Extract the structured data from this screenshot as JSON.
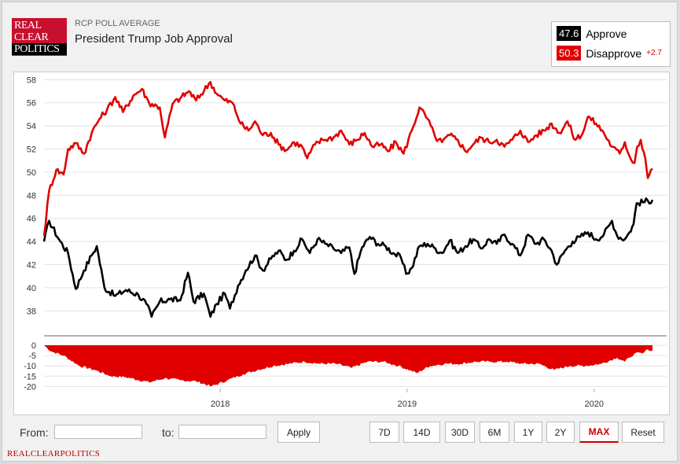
{
  "header": {
    "logo_lines": [
      "REAL",
      "CLEAR",
      "POLITICS"
    ],
    "subtitle": "RCP POLL AVERAGE",
    "title": "President Trump Job Approval"
  },
  "legend": {
    "approve": {
      "value": "47.6",
      "label": "Approve",
      "color": "#000000"
    },
    "disapprove": {
      "value": "50.3",
      "label": "Disapprove",
      "delta": "+2.7",
      "color": "#e00000"
    }
  },
  "controls": {
    "from_label": "From:",
    "to_label": "to:",
    "from_value": "",
    "to_value": "",
    "apply_label": "Apply",
    "ranges": [
      "7D",
      "14D",
      "30D",
      "6M",
      "1Y",
      "2Y",
      "MAX"
    ],
    "active_range": "MAX",
    "reset_label": "Reset"
  },
  "footer": "REALCLEARPOLITICS",
  "chart_data": [
    {
      "type": "line",
      "ylim": [
        37,
        58.5
      ],
      "yticks": [
        38,
        40,
        42,
        44,
        46,
        48,
        50,
        52,
        54,
        56,
        58
      ],
      "xlim": [
        "2017-01-22",
        "2020-04-24"
      ],
      "xticks": [
        {
          "label": "2018",
          "date": "2018-01-01"
        },
        {
          "label": "2019",
          "date": "2019-01-01"
        },
        {
          "label": "2020",
          "date": "2020-01-01"
        }
      ],
      "series": [
        {
          "name": "Approve",
          "color": "#000000",
          "points": [
            [
              "2017-01-22",
              44.0
            ],
            [
              "2017-02-01",
              45.8
            ],
            [
              "2017-02-20",
              44.2
            ],
            [
              "2017-03-10",
              43.0
            ],
            [
              "2017-03-25",
              39.9
            ],
            [
              "2017-04-10",
              41.5
            ],
            [
              "2017-04-25",
              42.8
            ],
            [
              "2017-05-05",
              43.6
            ],
            [
              "2017-05-20",
              40.0
            ],
            [
              "2017-06-10",
              39.3
            ],
            [
              "2017-07-01",
              39.8
            ],
            [
              "2017-07-25",
              39.4
            ],
            [
              "2017-08-10",
              38.6
            ],
            [
              "2017-08-20",
              37.5
            ],
            [
              "2017-09-05",
              38.8
            ],
            [
              "2017-09-25",
              39.0
            ],
            [
              "2017-10-15",
              38.9
            ],
            [
              "2017-10-30",
              41.3
            ],
            [
              "2017-11-10",
              38.8
            ],
            [
              "2017-11-30",
              39.5
            ],
            [
              "2017-12-13",
              37.5
            ],
            [
              "2017-12-25",
              38.6
            ],
            [
              "2018-01-10",
              39.5
            ],
            [
              "2018-01-20",
              38.2
            ],
            [
              "2018-02-05",
              40.2
            ],
            [
              "2018-02-20",
              41.5
            ],
            [
              "2018-03-10",
              42.8
            ],
            [
              "2018-03-25",
              41.5
            ],
            [
              "2018-04-10",
              42.5
            ],
            [
              "2018-04-25",
              43.2
            ],
            [
              "2018-05-10",
              42.4
            ],
            [
              "2018-05-25",
              43.2
            ],
            [
              "2018-06-10",
              44.2
            ],
            [
              "2018-06-25",
              43.0
            ],
            [
              "2018-07-10",
              44.2
            ],
            [
              "2018-07-25",
              43.8
            ],
            [
              "2018-08-10",
              43.4
            ],
            [
              "2018-08-25",
              43.0
            ],
            [
              "2018-09-10",
              43.5
            ],
            [
              "2018-09-20",
              41.2
            ],
            [
              "2018-10-05",
              43.5
            ],
            [
              "2018-10-20",
              44.4
            ],
            [
              "2018-11-05",
              43.8
            ],
            [
              "2018-11-20",
              43.6
            ],
            [
              "2018-12-05",
              43.0
            ],
            [
              "2018-12-20",
              42.6
            ],
            [
              "2018-12-30",
              41.2
            ],
            [
              "2019-01-10",
              41.7
            ],
            [
              "2019-01-25",
              43.6
            ],
            [
              "2019-02-10",
              43.8
            ],
            [
              "2019-02-25",
              43.4
            ],
            [
              "2019-03-10",
              43.0
            ],
            [
              "2019-03-25",
              44.1
            ],
            [
              "2019-04-10",
              43.0
            ],
            [
              "2019-04-25",
              43.6
            ],
            [
              "2019-05-10",
              44.2
            ],
            [
              "2019-05-25",
              43.4
            ],
            [
              "2019-06-10",
              44.2
            ],
            [
              "2019-06-25",
              43.8
            ],
            [
              "2019-07-10",
              44.6
            ],
            [
              "2019-07-25",
              43.8
            ],
            [
              "2019-08-10",
              42.8
            ],
            [
              "2019-08-25",
              44.6
            ],
            [
              "2019-09-10",
              43.8
            ],
            [
              "2019-09-25",
              44.2
            ],
            [
              "2019-10-10",
              43.2
            ],
            [
              "2019-10-20",
              42.0
            ],
            [
              "2019-11-05",
              43.2
            ],
            [
              "2019-11-20",
              44.0
            ],
            [
              "2019-12-05",
              44.4
            ],
            [
              "2019-12-20",
              44.8
            ],
            [
              "2020-01-05",
              44.2
            ],
            [
              "2020-01-20",
              44.6
            ],
            [
              "2020-02-05",
              45.8
            ],
            [
              "2020-02-15",
              44.5
            ],
            [
              "2020-03-01",
              44.2
            ],
            [
              "2020-03-10",
              44.8
            ],
            [
              "2020-03-18",
              45.5
            ],
            [
              "2020-03-24",
              47.3
            ],
            [
              "2020-04-24",
              47.6
            ]
          ]
        },
        {
          "name": "Disapprove",
          "color": "#e00000",
          "points": [
            [
              "2017-01-22",
              44.5
            ],
            [
              "2017-02-01",
              48.4
            ],
            [
              "2017-02-15",
              50.2
            ],
            [
              "2017-03-01",
              49.8
            ],
            [
              "2017-03-10",
              52.0
            ],
            [
              "2017-03-25",
              52.5
            ],
            [
              "2017-04-10",
              51.6
            ],
            [
              "2017-04-25",
              53.4
            ],
            [
              "2017-05-10",
              54.6
            ],
            [
              "2017-05-25",
              55.4
            ],
            [
              "2017-06-10",
              56.5
            ],
            [
              "2017-06-25",
              55.2
            ],
            [
              "2017-07-15",
              56.6
            ],
            [
              "2017-08-01",
              57.2
            ],
            [
              "2017-08-15",
              56.0
            ],
            [
              "2017-09-05",
              55.6
            ],
            [
              "2017-09-15",
              53.0
            ],
            [
              "2017-09-30",
              55.9
            ],
            [
              "2017-10-15",
              56.4
            ],
            [
              "2017-11-01",
              57.0
            ],
            [
              "2017-11-15",
              56.2
            ],
            [
              "2017-12-13",
              57.8
            ],
            [
              "2017-12-25",
              56.8
            ],
            [
              "2018-01-10",
              56.2
            ],
            [
              "2018-01-25",
              56.0
            ],
            [
              "2018-02-10",
              54.2
            ],
            [
              "2018-02-25",
              53.6
            ],
            [
              "2018-03-10",
              54.4
            ],
            [
              "2018-03-25",
              53.2
            ],
            [
              "2018-04-10",
              53.4
            ],
            [
              "2018-04-25",
              52.4
            ],
            [
              "2018-05-10",
              51.9
            ],
            [
              "2018-05-25",
              52.6
            ],
            [
              "2018-06-10",
              52.2
            ],
            [
              "2018-06-20",
              51.2
            ],
            [
              "2018-07-05",
              52.4
            ],
            [
              "2018-07-20",
              52.8
            ],
            [
              "2018-08-10",
              53.0
            ],
            [
              "2018-08-25",
              53.6
            ],
            [
              "2018-09-10",
              52.4
            ],
            [
              "2018-09-25",
              52.8
            ],
            [
              "2018-10-10",
              53.4
            ],
            [
              "2018-10-25",
              52.2
            ],
            [
              "2018-11-10",
              52.4
            ],
            [
              "2018-11-25",
              51.8
            ],
            [
              "2018-12-10",
              52.6
            ],
            [
              "2018-12-25",
              51.6
            ],
            [
              "2019-01-10",
              53.6
            ],
            [
              "2019-01-25",
              55.6
            ],
            [
              "2019-02-10",
              54.6
            ],
            [
              "2019-02-25",
              53.0
            ],
            [
              "2019-03-10",
              52.6
            ],
            [
              "2019-03-25",
              53.2
            ],
            [
              "2019-04-10",
              52.8
            ],
            [
              "2019-04-25",
              51.8
            ],
            [
              "2019-05-10",
              52.4
            ],
            [
              "2019-05-25",
              53.0
            ],
            [
              "2019-06-10",
              52.6
            ],
            [
              "2019-06-25",
              52.8
            ],
            [
              "2019-07-10",
              52.2
            ],
            [
              "2019-07-25",
              52.8
            ],
            [
              "2019-08-10",
              53.6
            ],
            [
              "2019-08-25",
              52.6
            ],
            [
              "2019-09-10",
              53.2
            ],
            [
              "2019-09-25",
              53.6
            ],
            [
              "2019-10-10",
              54.2
            ],
            [
              "2019-10-25",
              53.4
            ],
            [
              "2019-11-10",
              54.4
            ],
            [
              "2019-11-25",
              52.8
            ],
            [
              "2019-12-10",
              53.4
            ],
            [
              "2019-12-20",
              54.8
            ],
            [
              "2020-01-05",
              54.2
            ],
            [
              "2020-01-20",
              53.4
            ],
            [
              "2020-02-05",
              52.2
            ],
            [
              "2020-02-20",
              51.6
            ],
            [
              "2020-03-01",
              52.6
            ],
            [
              "2020-03-10",
              51.4
            ],
            [
              "2020-03-20",
              50.8
            ],
            [
              "2020-03-25",
              52.2
            ],
            [
              "2020-04-01",
              52.8
            ],
            [
              "2020-04-10",
              51.2
            ],
            [
              "2020-04-15",
              49.5
            ],
            [
              "2020-04-24",
              50.3
            ]
          ]
        }
      ]
    },
    {
      "type": "area",
      "name": "Spread",
      "color": "#e00000",
      "ylim": [
        -21,
        0
      ],
      "yticks": [
        0,
        -5,
        -10,
        -15,
        -20
      ],
      "points": [
        [
          "2017-01-22",
          0
        ],
        [
          "2017-02-05",
          -3
        ],
        [
          "2017-03-01",
          -5
        ],
        [
          "2017-04-01",
          -10
        ],
        [
          "2017-05-01",
          -12
        ],
        [
          "2017-06-01",
          -15
        ],
        [
          "2017-07-01",
          -15.5
        ],
        [
          "2017-08-15",
          -18
        ],
        [
          "2017-09-15",
          -16
        ],
        [
          "2017-10-15",
          -17
        ],
        [
          "2017-11-15",
          -17.5
        ],
        [
          "2017-12-15",
          -20
        ],
        [
          "2018-01-15",
          -17
        ],
        [
          "2018-02-15",
          -14
        ],
        [
          "2018-03-15",
          -12
        ],
        [
          "2018-04-15",
          -10
        ],
        [
          "2018-05-15",
          -9
        ],
        [
          "2018-06-15",
          -8
        ],
        [
          "2018-07-15",
          -9
        ],
        [
          "2018-08-15",
          -9
        ],
        [
          "2018-09-15",
          -11
        ],
        [
          "2018-10-15",
          -8
        ],
        [
          "2018-11-15",
          -8
        ],
        [
          "2018-12-15",
          -10
        ],
        [
          "2019-01-20",
          -13.5
        ],
        [
          "2019-02-15",
          -10
        ],
        [
          "2019-03-15",
          -9
        ],
        [
          "2019-04-15",
          -9
        ],
        [
          "2019-05-15",
          -8
        ],
        [
          "2019-06-15",
          -8
        ],
        [
          "2019-07-15",
          -8
        ],
        [
          "2019-08-15",
          -9
        ],
        [
          "2019-09-15",
          -9
        ],
        [
          "2019-10-15",
          -12
        ],
        [
          "2019-11-15",
          -10
        ],
        [
          "2019-12-15",
          -10
        ],
        [
          "2020-01-15",
          -9
        ],
        [
          "2020-02-15",
          -6
        ],
        [
          "2020-03-01",
          -8
        ],
        [
          "2020-03-10",
          -6
        ],
        [
          "2020-03-20",
          -4
        ],
        [
          "2020-04-05",
          -4
        ],
        [
          "2020-04-15",
          -2
        ],
        [
          "2020-04-24",
          -2.7
        ]
      ]
    }
  ]
}
